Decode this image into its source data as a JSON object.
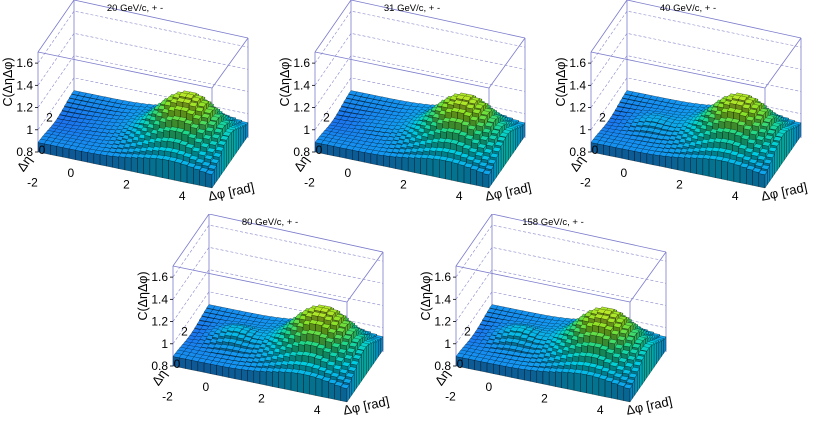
{
  "chart_data": [
    {
      "type": "surface3d",
      "title": "20 GeV/c, + -",
      "xlabel": "Δφ [rad]",
      "ylabel": "Δη",
      "zlabel": "C(ΔηΔφ)",
      "x_ticks": [
        "0",
        "2",
        "4"
      ],
      "y_ticks": [
        "2",
        "0",
        "-2"
      ],
      "z_ticks": [
        "0.8",
        "1",
        "1.2",
        "1.4",
        "1.6"
      ],
      "zlim": [
        0.8,
        1.7
      ],
      "peak_value": 1.32,
      "near_side_peak": 0.02
    },
    {
      "type": "surface3d",
      "title": "31 GeV/c, + -",
      "xlabel": "Δφ [rad]",
      "ylabel": "Δη",
      "zlabel": "C(ΔηΔφ)",
      "x_ticks": [
        "0",
        "2",
        "4"
      ],
      "y_ticks": [
        "2",
        "0",
        "-2"
      ],
      "z_ticks": [
        "0.8",
        "1",
        "1.2",
        "1.4",
        "1.6"
      ],
      "zlim": [
        0.8,
        1.7
      ],
      "peak_value": 1.3,
      "near_side_peak": 0.03
    },
    {
      "type": "surface3d",
      "title": "40 GeV/c, + -",
      "xlabel": "Δφ [rad]",
      "ylabel": "Δη",
      "zlabel": "C(ΔηΔφ)",
      "x_ticks": [
        "0",
        "2",
        "4"
      ],
      "y_ticks": [
        "2",
        "0",
        "-2"
      ],
      "z_ticks": [
        "0.8",
        "1",
        "1.2",
        "1.4",
        "1.6"
      ],
      "zlim": [
        0.8,
        1.7
      ],
      "peak_value": 1.3,
      "near_side_peak": 0.08
    },
    {
      "type": "surface3d",
      "title": "80 GeV/c, + -",
      "xlabel": "Δφ [rad]",
      "ylabel": "Δη",
      "zlabel": "C(ΔηΔφ)",
      "x_ticks": [
        "0",
        "2",
        "4"
      ],
      "y_ticks": [
        "2",
        "0",
        "-2"
      ],
      "z_ticks": [
        "0.8",
        "1",
        "1.2",
        "1.4",
        "1.6"
      ],
      "zlim": [
        0.8,
        1.7
      ],
      "peak_value": 1.32,
      "near_side_peak": 0.12
    },
    {
      "type": "surface3d",
      "title": "158 GeV/c, + -",
      "xlabel": "Δφ [rad]",
      "ylabel": "Δη",
      "zlabel": "C(ΔηΔφ)",
      "x_ticks": [
        "0",
        "2",
        "4"
      ],
      "y_ticks": [
        "2",
        "0",
        "-2"
      ],
      "z_ticks": [
        "0.8",
        "1",
        "1.2",
        "1.4",
        "1.6"
      ],
      "zlim": [
        0.8,
        1.7
      ],
      "peak_value": 1.3,
      "near_side_peak": 0.12
    }
  ]
}
